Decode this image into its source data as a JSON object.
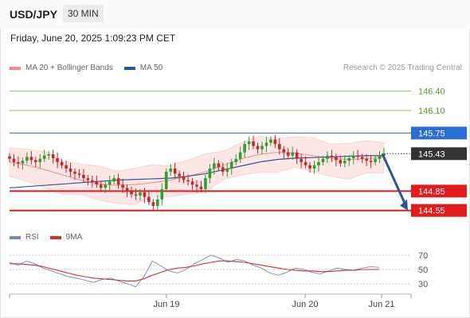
{
  "header": {
    "symbol": "USD/JPY",
    "timeframe": "30 MIN"
  },
  "datetime_text": "Friday, June 20, 2025 1:09:23 PM CET",
  "credit": "Research © 2025 Trading Central",
  "colors": {
    "bollinger": "#f08b8b",
    "ma50": "#2f5597",
    "target_green": "#8fc36c",
    "current_line": "#4a7fd4",
    "support_red": "#e21b1b",
    "candle_green": "#2f9e2f",
    "candle_red": "#c62828",
    "arrow": "#2f5597",
    "rsi": "#6f87c7",
    "rsi_ma": "#d32f2f"
  },
  "chart_data": [
    {
      "type": "candlestick",
      "title": "USD/JPY",
      "legend": [
        {
          "label": "MA 20 + Bollinger Bands",
          "color": "#f08b8b"
        },
        {
          "label": "MA 50",
          "color": "#2f5597"
        }
      ],
      "legend_position": "top-left",
      "ylim": [
        144.3,
        146.58
      ],
      "x_ticks": [
        "Jun 19",
        "Jun 20",
        "Jun 21"
      ],
      "levels": [
        {
          "label": "146.40",
          "value": 146.4,
          "kind": "resistance-target",
          "color": "#8fc36c"
        },
        {
          "label": "146.10",
          "value": 146.1,
          "kind": "resistance-target",
          "color": "#8fc36c"
        },
        {
          "label": "145.75",
          "value": 145.75,
          "kind": "pivot",
          "color": "#4a7fd4"
        },
        {
          "label": "145.43",
          "value": 145.43,
          "kind": "last-price",
          "color": "#333333"
        },
        {
          "label": "144.85",
          "value": 144.85,
          "kind": "support",
          "color": "#e21b1b"
        },
        {
          "label": "144.55",
          "value": 144.55,
          "kind": "support",
          "color": "#e21b1b"
        }
      ],
      "close_series": [
        145.35,
        145.3,
        145.28,
        145.32,
        145.38,
        145.33,
        145.3,
        145.35,
        145.4,
        145.42,
        145.36,
        145.3,
        145.25,
        145.2,
        145.15,
        145.12,
        145.1,
        145.05,
        145.02,
        145.0,
        144.95,
        144.9,
        144.95,
        145.0,
        145.05,
        144.95,
        144.9,
        144.85,
        144.8,
        144.78,
        144.83,
        144.76,
        144.68,
        144.62,
        144.72,
        144.88,
        145.15,
        145.2,
        145.12,
        145.08,
        145.02,
        145.0,
        144.95,
        144.92,
        144.88,
        145.05,
        145.2,
        145.28,
        145.22,
        145.15,
        145.2,
        145.3,
        145.35,
        145.45,
        145.58,
        145.62,
        145.55,
        145.5,
        145.55,
        145.6,
        145.65,
        145.58,
        145.5,
        145.45,
        145.4,
        145.45,
        145.35,
        145.3,
        145.25,
        145.2,
        145.25,
        145.3,
        145.35,
        145.4,
        145.38,
        145.33,
        145.28,
        145.32,
        145.36,
        145.4,
        145.38,
        145.35,
        145.32,
        145.3,
        145.35,
        145.4,
        145.43
      ],
      "ma20_series": [
        145.3,
        145.25,
        145.18,
        145.1,
        145.02,
        144.96,
        144.94,
        144.95,
        144.98,
        145.02,
        145.08,
        145.15,
        145.25,
        145.35,
        145.42,
        145.45,
        145.44,
        145.4,
        145.36,
        145.34,
        145.35,
        145.38
      ],
      "ma50_series": [
        144.9,
        144.92,
        144.94,
        144.96,
        144.98,
        145.0,
        145.02,
        145.03,
        145.04,
        145.05,
        145.08,
        145.12,
        145.18,
        145.24,
        145.3,
        145.34,
        145.36,
        145.37,
        145.38,
        145.39,
        145.4,
        145.4
      ],
      "forecast": {
        "from": 145.43,
        "to": 144.55,
        "direction": "down"
      }
    },
    {
      "type": "line",
      "title": "RSI",
      "legend": [
        {
          "label": "RSI",
          "color": "#6f87c7"
        },
        {
          "label": "9MA",
          "color": "#d32f2f"
        }
      ],
      "ylim": [
        20,
        80
      ],
      "y_ticks": [
        "70",
        "50",
        "30"
      ],
      "series": [
        {
          "name": "RSI",
          "values": [
            60,
            56,
            62,
            58,
            52,
            48,
            44,
            40,
            38,
            35,
            32,
            36,
            38,
            34,
            30,
            26,
            40,
            62,
            55,
            48,
            45,
            50,
            58,
            64,
            70,
            66,
            60,
            64,
            62,
            56,
            52,
            45,
            42,
            46,
            52,
            50,
            46,
            44,
            48,
            52,
            50,
            49,
            52,
            54,
            53
          ]
        },
        {
          "name": "9MA",
          "values": [
            58,
            58,
            57,
            56,
            54,
            51,
            48,
            45,
            42,
            40,
            38,
            37,
            36,
            35,
            34,
            34,
            37,
            42,
            46,
            50,
            52,
            53,
            55,
            58,
            60,
            62,
            62,
            61,
            60,
            58,
            56,
            54,
            52,
            50,
            49,
            48,
            48,
            47,
            47,
            48,
            49,
            49,
            50,
            50,
            50
          ]
        }
      ]
    }
  ]
}
